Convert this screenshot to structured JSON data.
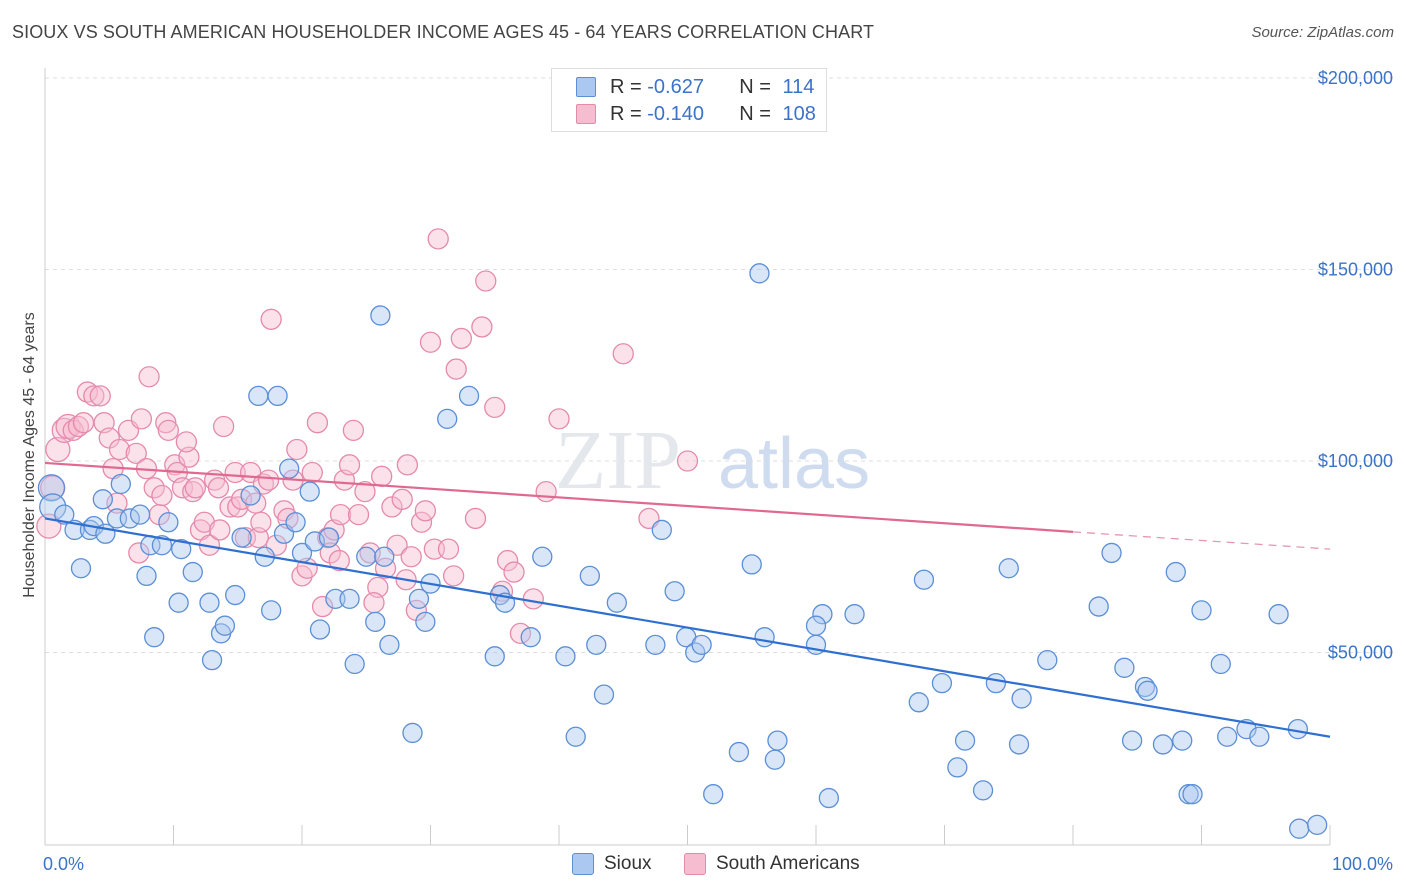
{
  "title": "SIOUX VS SOUTH AMERICAN HOUSEHOLDER INCOME AGES 45 - 64 YEARS CORRELATION CHART",
  "source": "Source: ZipAtlas.com",
  "watermark": {
    "zip": "ZIP",
    "atlas": "atlas"
  },
  "legend": {
    "rows": [
      {
        "r_label": "R = ",
        "r_value": "-0.627",
        "n_label": "N = ",
        "n_value": "114"
      },
      {
        "r_label": "R = ",
        "r_value": "-0.140",
        "n_label": "N = ",
        "n_value": "108"
      }
    ]
  },
  "bottom_legend": [
    "Sioux",
    "South Americans"
  ],
  "colors": {
    "sioux_fill": "#aac8f0",
    "sioux_stroke": "#5b8fd6",
    "sioux_line": "#2f6fd0",
    "sa_fill": "#f6bcd0",
    "sa_stroke": "#e58aab",
    "sa_line": "#e0698f",
    "tick": "#3b73c9",
    "grid": "#dddddd"
  },
  "chart_data": {
    "type": "scatter",
    "xlabel": "",
    "ylabel": "Householder Income Ages 45 - 64 years",
    "xlim": [
      0,
      100
    ],
    "ylim": [
      0,
      210000
    ],
    "x_tick_labels": [
      "0.0%",
      "100.0%"
    ],
    "y_ticks": [
      50000,
      100000,
      150000,
      200000
    ],
    "y_tick_labels": [
      "$50,000",
      "$100,000",
      "$150,000",
      "$200,000"
    ],
    "grid": true,
    "legend_position": "top-center",
    "series": [
      {
        "name": "Sioux",
        "r": -0.627,
        "n": 114,
        "trend": {
          "x": [
            0,
            100
          ],
          "y": [
            85000,
            28000
          ],
          "dashed_from": null
        },
        "points": [
          [
            0.5,
            93000
          ],
          [
            0.6,
            88000
          ],
          [
            1.5,
            86000
          ],
          [
            2.3,
            82000
          ],
          [
            2.8,
            72000
          ],
          [
            3.5,
            82000
          ],
          [
            3.8,
            83000
          ],
          [
            4.5,
            90000
          ],
          [
            4.7,
            81000
          ],
          [
            5.6,
            85000
          ],
          [
            5.9,
            94000
          ],
          [
            6.6,
            85000
          ],
          [
            7.4,
            86000
          ],
          [
            7.9,
            70000
          ],
          [
            8.2,
            78000
          ],
          [
            8.5,
            54000
          ],
          [
            9.1,
            78000
          ],
          [
            9.6,
            84000
          ],
          [
            10.4,
            63000
          ],
          [
            10.6,
            77000
          ],
          [
            11.5,
            71000
          ],
          [
            12.8,
            63000
          ],
          [
            13.0,
            48000
          ],
          [
            13.7,
            55000
          ],
          [
            14.0,
            57000
          ],
          [
            14.8,
            65000
          ],
          [
            15.3,
            80000
          ],
          [
            16.0,
            91000
          ],
          [
            16.6,
            117000
          ],
          [
            17.1,
            75000
          ],
          [
            17.6,
            61000
          ],
          [
            18.1,
            117000
          ],
          [
            18.6,
            81000
          ],
          [
            19.0,
            98000
          ],
          [
            19.5,
            84000
          ],
          [
            20.0,
            76000
          ],
          [
            20.6,
            92000
          ],
          [
            21.0,
            79000
          ],
          [
            21.4,
            56000
          ],
          [
            22.1,
            80000
          ],
          [
            22.6,
            64000
          ],
          [
            23.7,
            64000
          ],
          [
            24.1,
            47000
          ],
          [
            25.0,
            75000
          ],
          [
            25.7,
            58000
          ],
          [
            26.1,
            138000
          ],
          [
            26.4,
            75000
          ],
          [
            26.8,
            52000
          ],
          [
            28.6,
            29000
          ],
          [
            29.1,
            64000
          ],
          [
            29.6,
            58000
          ],
          [
            30.0,
            68000
          ],
          [
            31.3,
            111000
          ],
          [
            33.0,
            117000
          ],
          [
            35.0,
            49000
          ],
          [
            35.4,
            65000
          ],
          [
            35.8,
            63000
          ],
          [
            37.8,
            54000
          ],
          [
            40.5,
            49000
          ],
          [
            41.3,
            28000
          ],
          [
            42.4,
            70000
          ],
          [
            42.9,
            52000
          ],
          [
            43.5,
            39000
          ],
          [
            44.5,
            63000
          ],
          [
            47.5,
            52000
          ],
          [
            48.0,
            82000
          ],
          [
            49.0,
            66000
          ],
          [
            49.9,
            54000
          ],
          [
            50.6,
            50000
          ],
          [
            51.1,
            52000
          ],
          [
            52.0,
            13000
          ],
          [
            54.0,
            24000
          ],
          [
            55.0,
            73000
          ],
          [
            55.6,
            149000
          ],
          [
            56.0,
            54000
          ],
          [
            57.0,
            27000
          ],
          [
            60.0,
            52000
          ],
          [
            60.5,
            60000
          ],
          [
            61.0,
            12000
          ],
          [
            63.0,
            60000
          ],
          [
            68.0,
            37000
          ],
          [
            68.4,
            69000
          ],
          [
            69.8,
            42000
          ],
          [
            71.0,
            20000
          ],
          [
            71.6,
            27000
          ],
          [
            73.0,
            14000
          ],
          [
            74.0,
            42000
          ],
          [
            75.0,
            72000
          ],
          [
            76.0,
            38000
          ],
          [
            78.0,
            48000
          ],
          [
            82.0,
            62000
          ],
          [
            83.0,
            76000
          ],
          [
            84.0,
            46000
          ],
          [
            84.6,
            27000
          ],
          [
            85.6,
            41000
          ],
          [
            85.8,
            40000
          ],
          [
            87.0,
            26000
          ],
          [
            88.0,
            71000
          ],
          [
            88.5,
            27000
          ],
          [
            89.0,
            13000
          ],
          [
            89.3,
            13000
          ],
          [
            90.0,
            61000
          ],
          [
            91.5,
            47000
          ],
          [
            93.5,
            30000
          ],
          [
            94.5,
            28000
          ],
          [
            96.0,
            60000
          ],
          [
            97.5,
            30000
          ],
          [
            97.6,
            4000
          ],
          [
            99.0,
            5000
          ],
          [
            92.0,
            28000
          ],
          [
            38.7,
            75000
          ],
          [
            56.8,
            22000
          ],
          [
            75.8,
            26000
          ],
          [
            60.0,
            57000
          ]
        ]
      },
      {
        "name": "South Americans",
        "r": -0.14,
        "n": 108,
        "trend": {
          "x": [
            0,
            100
          ],
          "y": [
            99500,
            77000
          ],
          "dashed_from": 80
        },
        "points": [
          [
            0.3,
            83000
          ],
          [
            0.6,
            93000
          ],
          [
            1.0,
            103000
          ],
          [
            1.5,
            108000
          ],
          [
            1.8,
            109000
          ],
          [
            2.2,
            108000
          ],
          [
            2.6,
            109000
          ],
          [
            3.0,
            110000
          ],
          [
            3.3,
            118000
          ],
          [
            3.8,
            117000
          ],
          [
            4.3,
            117000
          ],
          [
            4.6,
            110000
          ],
          [
            5.0,
            106000
          ],
          [
            5.3,
            98000
          ],
          [
            5.6,
            89000
          ],
          [
            5.8,
            103000
          ],
          [
            6.5,
            108000
          ],
          [
            7.1,
            102000
          ],
          [
            7.5,
            111000
          ],
          [
            7.9,
            98000
          ],
          [
            8.1,
            122000
          ],
          [
            8.5,
            93000
          ],
          [
            8.9,
            86000
          ],
          [
            9.1,
            91000
          ],
          [
            9.4,
            110000
          ],
          [
            9.6,
            108000
          ],
          [
            10.1,
            99000
          ],
          [
            10.3,
            97000
          ],
          [
            10.7,
            93000
          ],
          [
            11.2,
            101000
          ],
          [
            11.5,
            92000
          ],
          [
            11.7,
            93000
          ],
          [
            12.1,
            82000
          ],
          [
            12.4,
            84000
          ],
          [
            12.8,
            78000
          ],
          [
            13.2,
            95000
          ],
          [
            13.5,
            93000
          ],
          [
            13.9,
            109000
          ],
          [
            14.4,
            88000
          ],
          [
            14.8,
            97000
          ],
          [
            15.0,
            88000
          ],
          [
            15.3,
            90000
          ],
          [
            15.6,
            80000
          ],
          [
            16.0,
            97000
          ],
          [
            16.4,
            89000
          ],
          [
            16.6,
            80000
          ],
          [
            17.0,
            94000
          ],
          [
            17.4,
            95000
          ],
          [
            17.6,
            137000
          ],
          [
            18.0,
            78000
          ],
          [
            18.6,
            87000
          ],
          [
            18.9,
            85000
          ],
          [
            19.3,
            95000
          ],
          [
            19.6,
            103000
          ],
          [
            20.0,
            70000
          ],
          [
            20.4,
            72000
          ],
          [
            20.8,
            97000
          ],
          [
            21.2,
            110000
          ],
          [
            21.6,
            62000
          ],
          [
            22.0,
            80000
          ],
          [
            22.2,
            76000
          ],
          [
            22.5,
            82000
          ],
          [
            23.0,
            86000
          ],
          [
            23.3,
            95000
          ],
          [
            23.7,
            99000
          ],
          [
            24.0,
            108000
          ],
          [
            24.4,
            86000
          ],
          [
            24.9,
            92000
          ],
          [
            25.3,
            76000
          ],
          [
            25.9,
            67000
          ],
          [
            26.2,
            96000
          ],
          [
            26.5,
            72000
          ],
          [
            27.0,
            88000
          ],
          [
            27.4,
            78000
          ],
          [
            27.8,
            90000
          ],
          [
            28.1,
            69000
          ],
          [
            28.5,
            75000
          ],
          [
            28.9,
            61000
          ],
          [
            29.3,
            84000
          ],
          [
            29.6,
            87000
          ],
          [
            30.0,
            131000
          ],
          [
            30.3,
            77000
          ],
          [
            30.6,
            158000
          ],
          [
            31.4,
            77000
          ],
          [
            31.8,
            70000
          ],
          [
            32.0,
            124000
          ],
          [
            32.4,
            132000
          ],
          [
            33.5,
            85000
          ],
          [
            34.0,
            135000
          ],
          [
            34.3,
            147000
          ],
          [
            35.0,
            114000
          ],
          [
            36.0,
            74000
          ],
          [
            36.5,
            71000
          ],
          [
            37.0,
            55000
          ],
          [
            38.0,
            64000
          ],
          [
            39.0,
            92000
          ],
          [
            40.0,
            111000
          ],
          [
            45.0,
            128000
          ],
          [
            47.0,
            85000
          ],
          [
            50.0,
            100000
          ],
          [
            28.2,
            99000
          ],
          [
            16.8,
            84000
          ],
          [
            22.9,
            74000
          ],
          [
            35.6,
            66000
          ],
          [
            25.6,
            63000
          ],
          [
            13.6,
            82000
          ],
          [
            7.3,
            76000
          ],
          [
            11.0,
            105000
          ]
        ]
      }
    ]
  }
}
